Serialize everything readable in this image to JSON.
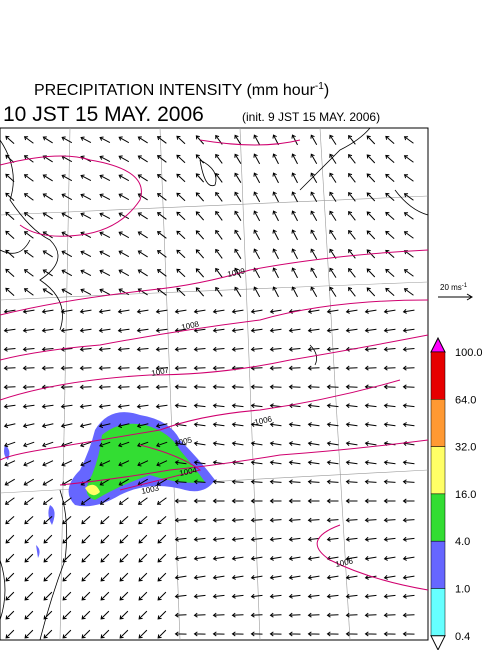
{
  "header": {
    "title": "PRECIPITATION INTENSITY (mm hour",
    "title_sup": "-1",
    "title_end": ")",
    "valid_time": "10 JST 15 MAY. 2006",
    "init_time": "(init. 9 JST 15 MAY. 2006)"
  },
  "wind_scale": {
    "label": "20 ms",
    "sup": "-1"
  },
  "isobars": [
    "1009",
    "1008",
    "1007",
    "1006",
    "1005",
    "1004",
    "1003",
    "1006"
  ],
  "colorbar": {
    "labels": [
      "100.0",
      "64.0",
      "32.0",
      "16.0",
      "4.0",
      "1.0",
      "0.4"
    ],
    "colors": [
      "#ff00ff",
      "#e60000",
      "#ff9933",
      "#ffff66",
      "#33dd33",
      "#6666ff",
      "#66ffff",
      "#ffffff"
    ]
  }
}
